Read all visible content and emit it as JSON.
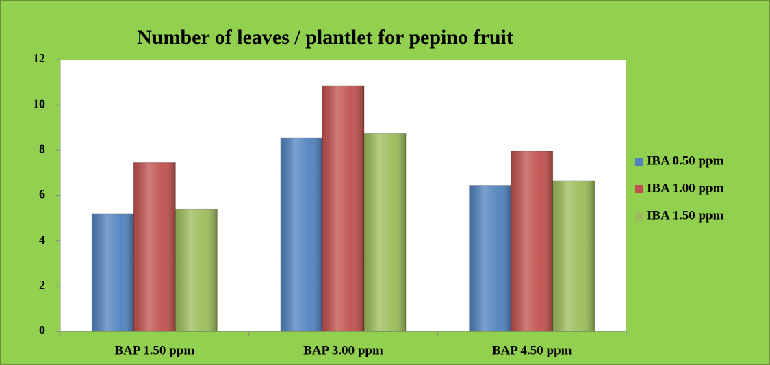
{
  "chart_data": {
    "type": "bar",
    "title": "Number of leaves / plantlet for pepino fruit",
    "categories": [
      "BAP 1.50 ppm",
      "BAP 3.00 ppm",
      "BAP 4.50 ppm"
    ],
    "series": [
      {
        "name": "IBA 0.50 ppm",
        "color": "#4f81bd",
        "values": [
          5.2,
          8.55,
          6.45
        ]
      },
      {
        "name": "IBA 1.00 ppm",
        "color": "#c0504d",
        "values": [
          7.45,
          10.85,
          7.95
        ]
      },
      {
        "name": "IBA 1.50 ppm",
        "color": "#9bbb59",
        "values": [
          5.4,
          8.75,
          6.65
        ]
      }
    ],
    "ylim": [
      0,
      12
    ],
    "yticks": [
      0,
      2,
      4,
      6,
      8,
      10,
      12
    ],
    "legend": "right"
  }
}
